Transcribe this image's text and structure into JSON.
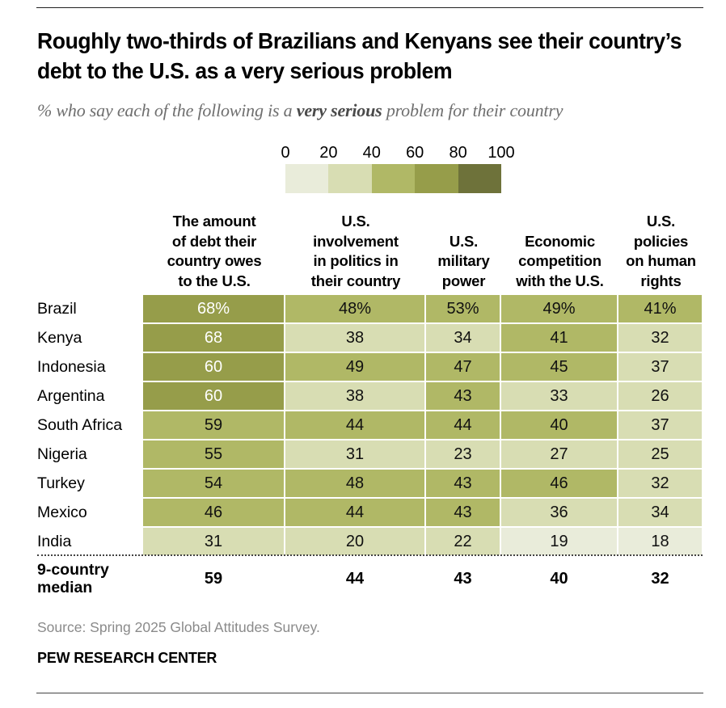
{
  "title": "Roughly two-thirds of Brazilians and Kenyans see their country’s debt to the U.S. as a very serious problem",
  "subtitle": {
    "before": "% who say each of the following is a ",
    "emphasis": "very serious",
    "after": " problem for their country"
  },
  "legend": {
    "ticks": [
      "0",
      "20",
      "40",
      "60",
      "80",
      "100"
    ],
    "bins": [
      {
        "range": [
          0,
          20
        ],
        "color": "#e9ecda"
      },
      {
        "range": [
          20,
          40
        ],
        "color": "#d8ddb3"
      },
      {
        "range": [
          40,
          60
        ],
        "color": "#b0b866"
      },
      {
        "range": [
          60,
          80
        ],
        "color": "#969d4a"
      },
      {
        "range": [
          80,
          100
        ],
        "color": "#6e723a"
      }
    ]
  },
  "chart_data": {
    "type": "heatmap",
    "title": "Roughly two-thirds of Brazilians and Kenyans see their country’s debt to the U.S. as a very serious problem",
    "subtitle": "% who say each of the following is a very serious problem for their country",
    "columns": [
      "The amount of debt their country owes to the U.S.",
      "U.S. involvement in politics in their country",
      "U.S. military power",
      "Economic competition with the U.S.",
      "U.S. policies on human rights"
    ],
    "column_lines": [
      [
        "The amount",
        "of debt their",
        "country owes",
        "to the U.S."
      ],
      [
        "U.S.",
        "involvement",
        "in politics in",
        "their country"
      ],
      [
        "U.S.",
        "military",
        "power"
      ],
      [
        "Economic",
        "competition",
        "with the U.S."
      ],
      [
        "U.S.",
        "policies",
        "on human",
        "rights"
      ]
    ],
    "rows": [
      "Brazil",
      "Kenya",
      "Indonesia",
      "Argentina",
      "South Africa",
      "Nigeria",
      "Turkey",
      "Mexico",
      "India"
    ],
    "values": [
      [
        68,
        48,
        53,
        49,
        41
      ],
      [
        68,
        38,
        34,
        41,
        32
      ],
      [
        60,
        49,
        47,
        45,
        37
      ],
      [
        60,
        38,
        43,
        33,
        26
      ],
      [
        59,
        44,
        44,
        40,
        37
      ],
      [
        55,
        31,
        23,
        27,
        25
      ],
      [
        54,
        48,
        43,
        46,
        32
      ],
      [
        46,
        44,
        43,
        36,
        34
      ],
      [
        31,
        20,
        22,
        19,
        18
      ]
    ],
    "first_row_suffix": "%",
    "median": {
      "label_lines": [
        "9-country",
        "median"
      ],
      "values": [
        59,
        44,
        43,
        40,
        32
      ]
    },
    "scale": {
      "min": 0,
      "max": 100,
      "step": 20
    }
  },
  "footer": {
    "source": "Source: Spring 2025 Global Attitudes Survey.",
    "brand": "PEW RESEARCH CENTER"
  }
}
